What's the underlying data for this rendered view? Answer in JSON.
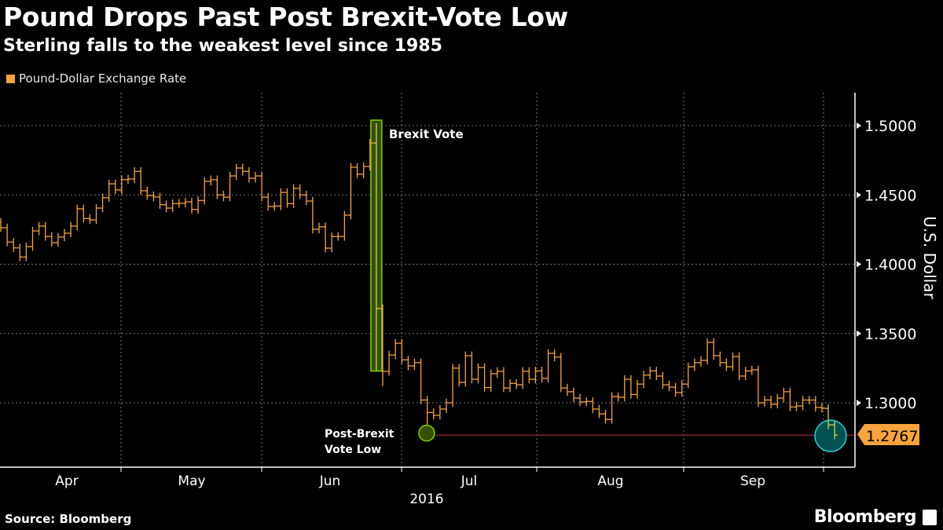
{
  "header": {
    "title": "Pound Drops Past Post Brexit-Vote Low",
    "subtitle": "Sterling falls to the weakest level since 1985"
  },
  "footer": {
    "source": "Source: Bloomberg",
    "logo_text": "Bloomberg"
  },
  "chart_data": {
    "type": "ohlc-bar",
    "series": [
      {
        "name": "Pound-Dollar Exchange Rate",
        "color": "#f8a33c",
        "close": [
          1.4263,
          1.416,
          1.4118,
          1.4052,
          1.4127,
          1.424,
          1.4275,
          1.42,
          1.4156,
          1.4196,
          1.4224,
          1.4275,
          1.44,
          1.433,
          1.432,
          1.4405,
          1.448,
          1.458,
          1.4536,
          1.461,
          1.4615,
          1.467,
          1.453,
          1.4495,
          1.4485,
          1.443,
          1.4405,
          1.4437,
          1.444,
          1.445,
          1.4395,
          1.446,
          1.4598,
          1.461,
          1.45,
          1.4484,
          1.4637,
          1.4694,
          1.467,
          1.462,
          1.4637,
          1.4484,
          1.4416,
          1.442,
          1.4518,
          1.4437,
          1.4547,
          1.45,
          1.4456,
          1.4252,
          1.427,
          1.4116,
          1.42,
          1.42,
          1.4354,
          1.47,
          1.465,
          1.4705,
          1.4875,
          1.368,
          1.3227,
          1.3345,
          1.343,
          1.331,
          1.3266,
          1.329,
          1.302,
          1.293,
          1.291,
          1.2955,
          1.3,
          1.325,
          1.3147,
          1.334,
          1.317,
          1.3255,
          1.311,
          1.321,
          1.3227,
          1.3107,
          1.314,
          1.313,
          1.3227,
          1.317,
          1.323,
          1.3176,
          1.3357,
          1.333,
          1.3107,
          1.308,
          1.3034,
          1.3006,
          1.301,
          1.2955,
          1.292,
          1.288,
          1.3045,
          1.304,
          1.317,
          1.306,
          1.3135,
          1.32,
          1.323,
          1.3193,
          1.313,
          1.3113,
          1.3074,
          1.3135,
          1.326,
          1.329,
          1.3306,
          1.3436,
          1.334,
          1.329,
          1.326,
          1.3334,
          1.3193,
          1.323,
          1.3238,
          1.3,
          1.302,
          1.299,
          1.3034,
          1.308,
          1.297,
          1.2977,
          1.302,
          1.302,
          1.2966,
          1.296,
          1.284,
          1.2767
        ]
      }
    ],
    "x_tick_labels": [
      "Apr",
      "May",
      "Jun",
      "Jul",
      "Aug",
      "Sep"
    ],
    "x_year_label": "2016",
    "y_tick_labels": [
      "1.3000",
      "1.3500",
      "1.4000",
      "1.4500",
      "1.5000"
    ],
    "y_ticks": [
      1.3,
      1.35,
      1.4,
      1.45,
      1.5
    ],
    "ylim": [
      1.234,
      1.5225
    ],
    "ylabel": "U.S. Dollar",
    "grid": true,
    "legend_position": "top-left",
    "last_value_label": "1.2767",
    "last_value": 1.2767,
    "annotations": {
      "brexit_vote": {
        "label": "Brexit Vote",
        "high": 1.5017,
        "low": 1.3229,
        "color": "#7ccf00"
      },
      "post_brexit_low": {
        "label_line1": "Post-Brexit",
        "label_line2": "Vote Low",
        "value": 1.2798,
        "color": "#7ccf00"
      },
      "current_highlight_color": "#2ad0d0",
      "reference_line_color": "#c0304a"
    }
  }
}
